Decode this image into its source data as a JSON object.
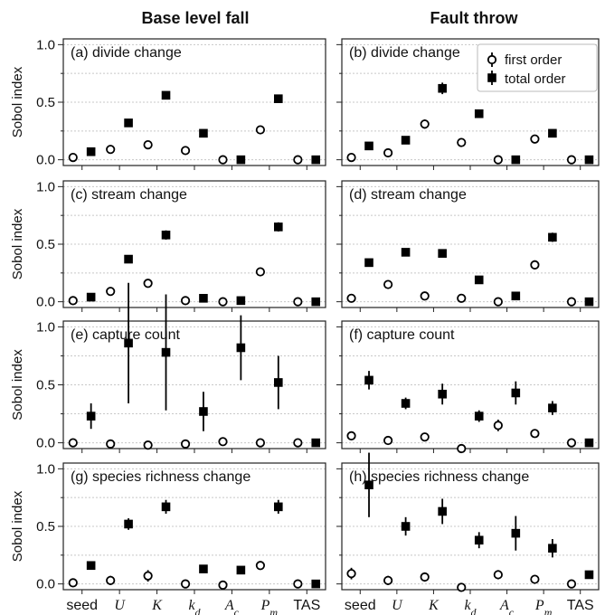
{
  "figure": {
    "column_titles": [
      "Base level fall",
      "Fault throw"
    ],
    "ylabel": "Sobol index",
    "legend": {
      "first_label": "first order",
      "total_label": "total order",
      "placement": "top-right of panel (b)"
    },
    "colors": {
      "ink": "#000000",
      "grid": "#c8c8c8",
      "frame": "#222222"
    }
  },
  "chart_data": [
    {
      "panel": "(a) divide change",
      "column": "Base level fall",
      "type": "scatter",
      "categories": [
        "seed",
        "U",
        "K",
        "k_d",
        "A_c",
        "P_m",
        "TAS"
      ],
      "ylim": [
        -0.05,
        1.05
      ],
      "yticks": [
        0.0,
        0.5,
        1.0
      ],
      "series": [
        {
          "name": "first order",
          "values": [
            0.02,
            0.09,
            0.13,
            0.08,
            0.0,
            0.26,
            0.0
          ],
          "err": [
            0,
            0,
            0.02,
            0,
            0,
            0.02,
            0
          ]
        },
        {
          "name": "total order",
          "values": [
            0.07,
            0.32,
            0.56,
            0.23,
            0.0,
            0.53,
            0.0
          ],
          "err": [
            0,
            0,
            0.03,
            0,
            0,
            0.03,
            0
          ]
        }
      ]
    },
    {
      "panel": "(b) divide change",
      "column": "Fault throw",
      "type": "scatter",
      "categories": [
        "seed",
        "U",
        "K",
        "k_d",
        "A_c",
        "P_m",
        "TAS"
      ],
      "ylim": [
        -0.05,
        1.05
      ],
      "yticks": [
        0.0,
        0.5,
        1.0
      ],
      "series": [
        {
          "name": "first order",
          "values": [
            0.02,
            0.06,
            0.31,
            0.15,
            0.0,
            0.18,
            0.0
          ],
          "err": [
            0,
            0,
            0.04,
            0.03,
            0,
            0.02,
            0
          ]
        },
        {
          "name": "total order",
          "values": [
            0.12,
            0.17,
            0.62,
            0.4,
            0.0,
            0.23,
            0.0
          ],
          "err": [
            0,
            0,
            0.05,
            0.03,
            0,
            0.02,
            0
          ]
        }
      ]
    },
    {
      "panel": "(c) stream change",
      "column": "Base level fall",
      "type": "scatter",
      "categories": [
        "seed",
        "U",
        "K",
        "k_d",
        "A_c",
        "P_m",
        "TAS"
      ],
      "ylim": [
        -0.05,
        1.05
      ],
      "yticks": [
        0.0,
        0.5,
        1.0
      ],
      "series": [
        {
          "name": "first order",
          "values": [
            0.01,
            0.09,
            0.16,
            0.01,
            0.0,
            0.26,
            0.0
          ],
          "err": [
            0,
            0,
            0.02,
            0,
            0,
            0.02,
            0
          ]
        },
        {
          "name": "total order",
          "values": [
            0.04,
            0.37,
            0.58,
            0.03,
            0.01,
            0.65,
            0.0
          ],
          "err": [
            0,
            0,
            0.04,
            0,
            0,
            0.04,
            0
          ]
        }
      ]
    },
    {
      "panel": "(d) stream change",
      "column": "Fault throw",
      "type": "scatter",
      "categories": [
        "seed",
        "U",
        "K",
        "k_d",
        "A_c",
        "P_m",
        "TAS"
      ],
      "ylim": [
        -0.05,
        1.05
      ],
      "yticks": [
        0.0,
        0.5,
        1.0
      ],
      "series": [
        {
          "name": "first order",
          "values": [
            0.03,
            0.15,
            0.05,
            0.03,
            0.0,
            0.32,
            0.0
          ],
          "err": [
            0,
            0,
            0.02,
            0,
            0,
            0.04,
            0
          ]
        },
        {
          "name": "total order",
          "values": [
            0.34,
            0.43,
            0.42,
            0.19,
            0.05,
            0.56,
            0.0
          ],
          "err": [
            0,
            0.03,
            0.02,
            0,
            0,
            0.04,
            0
          ]
        }
      ]
    },
    {
      "panel": "(e) capture count",
      "column": "Base level fall",
      "type": "scatter",
      "categories": [
        "seed",
        "U",
        "K",
        "k_d",
        "A_c",
        "P_m",
        "TAS"
      ],
      "ylim": [
        -0.05,
        1.05
      ],
      "yticks": [
        0.0,
        0.5,
        1.0
      ],
      "series": [
        {
          "name": "first order",
          "values": [
            0.0,
            -0.01,
            -0.02,
            -0.01,
            0.01,
            0.0,
            0.0
          ],
          "err": [
            0,
            0,
            0,
            0,
            0,
            0,
            0
          ]
        },
        {
          "name": "total order",
          "values": [
            0.23,
            0.86,
            0.78,
            0.27,
            0.82,
            0.52,
            0.0
          ],
          "err": [
            0.11,
            0.52,
            0.5,
            0.17,
            0.28,
            0.23,
            0
          ]
        }
      ]
    },
    {
      "panel": "(f) capture count",
      "column": "Fault throw",
      "type": "scatter",
      "categories": [
        "seed",
        "U",
        "K",
        "k_d",
        "A_c",
        "P_m",
        "TAS"
      ],
      "ylim": [
        -0.05,
        1.05
      ],
      "yticks": [
        0.0,
        0.5,
        1.0
      ],
      "series": [
        {
          "name": "first order",
          "values": [
            0.06,
            0.02,
            0.05,
            -0.05,
            0.15,
            0.08,
            0.0
          ],
          "err": [
            0.02,
            0.03,
            0.03,
            0,
            0.05,
            0.02,
            0
          ]
        },
        {
          "name": "total order",
          "values": [
            0.54,
            0.34,
            0.42,
            0.23,
            0.43,
            0.3,
            0.0
          ],
          "err": [
            0.08,
            0.05,
            0.09,
            0.05,
            0.1,
            0.06,
            0
          ]
        }
      ]
    },
    {
      "panel": "(g) species richness change",
      "column": "Base level fall",
      "type": "scatter",
      "categories": [
        "seed",
        "U",
        "K",
        "k_d",
        "A_c",
        "P_m",
        "TAS"
      ],
      "ylim": [
        -0.05,
        1.05
      ],
      "yticks": [
        0.0,
        0.5,
        1.0
      ],
      "series": [
        {
          "name": "first order",
          "values": [
            0.01,
            0.03,
            0.07,
            0.0,
            -0.01,
            0.16,
            0.0
          ],
          "err": [
            0,
            0.04,
            0.05,
            0,
            0,
            0.03,
            0
          ]
        },
        {
          "name": "total order",
          "values": [
            0.16,
            0.52,
            0.67,
            0.13,
            0.12,
            0.67,
            0.0
          ],
          "err": [
            0,
            0.05,
            0.06,
            0,
            0,
            0.06,
            0
          ]
        }
      ]
    },
    {
      "panel": "(h) species richness change",
      "column": "Fault throw",
      "type": "scatter",
      "categories": [
        "seed",
        "U",
        "K",
        "k_d",
        "A_c",
        "P_m",
        "TAS"
      ],
      "ylim": [
        -0.05,
        1.05
      ],
      "yticks": [
        0.0,
        0.5,
        1.0
      ],
      "series": [
        {
          "name": "first order",
          "values": [
            0.09,
            0.03,
            0.06,
            -0.03,
            0.08,
            0.04,
            0.0
          ],
          "err": [
            0.05,
            0.04,
            0.04,
            0,
            0.04,
            0.02,
            0
          ]
        },
        {
          "name": "total order",
          "values": [
            0.86,
            0.5,
            0.63,
            0.38,
            0.44,
            0.31,
            0.08
          ],
          "err": [
            0.28,
            0.08,
            0.11,
            0.07,
            0.15,
            0.08,
            0
          ]
        }
      ]
    }
  ]
}
